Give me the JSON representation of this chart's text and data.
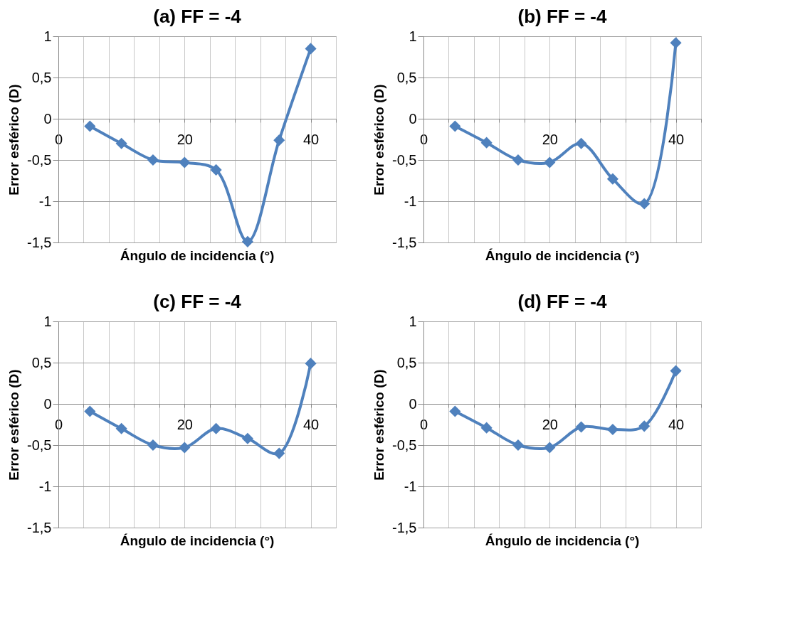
{
  "chart_data": [
    {
      "type": "line",
      "title": "(a) FF = -4",
      "xlabel": "Ángulo de incidencia (°)",
      "ylabel": "Error esférico (D)",
      "x": [
        5,
        10,
        15,
        20,
        25,
        30,
        35,
        40
      ],
      "xlim": [
        0,
        44
      ],
      "xticks": [
        0,
        {
          "value": 4,
          "label": null
        },
        {
          "value": 8,
          "label": null
        },
        {
          "value": 12,
          "label": null
        },
        {
          "value": 16,
          "label": null
        },
        20,
        {
          "value": 24,
          "label": null
        },
        {
          "value": 28,
          "label": null
        },
        {
          "value": 32,
          "label": null
        },
        {
          "value": 36,
          "label": null
        },
        40,
        {
          "value": 44,
          "label": null
        }
      ],
      "ylim": [
        -1.5,
        1
      ],
      "yticks": [
        {
          "value": -1.5,
          "label": "-1,5"
        },
        -1,
        {
          "value": -0.5,
          "label": "-0,5"
        },
        0,
        {
          "value": 0.5,
          "label": "0,5"
        },
        1
      ],
      "grid": true,
      "marker": "diamond",
      "line_style": "solid",
      "series": [
        {
          "color": "#4f81bd",
          "values": [
            -0.09,
            -0.3,
            -0.5,
            -0.53,
            -0.62,
            -1.49,
            -0.26,
            0.85
          ]
        }
      ]
    },
    {
      "type": "line",
      "title": "(b) FF = -4",
      "xlabel": "Ángulo de incidencia (°)",
      "ylabel": "Error esférico (D)",
      "x": [
        5,
        10,
        15,
        20,
        25,
        30,
        35,
        40
      ],
      "xlim": [
        0,
        44
      ],
      "xticks": [
        0,
        {
          "value": 4,
          "label": null
        },
        {
          "value": 8,
          "label": null
        },
        {
          "value": 12,
          "label": null
        },
        {
          "value": 16,
          "label": null
        },
        20,
        {
          "value": 24,
          "label": null
        },
        {
          "value": 28,
          "label": null
        },
        {
          "value": 32,
          "label": null
        },
        {
          "value": 36,
          "label": null
        },
        40,
        {
          "value": 44,
          "label": null
        }
      ],
      "ylim": [
        -1.5,
        1
      ],
      "yticks": [
        {
          "value": -1.5,
          "label": "-1,5"
        },
        -1,
        {
          "value": -0.5,
          "label": "-0,5"
        },
        0,
        {
          "value": 0.5,
          "label": "0,5"
        },
        1
      ],
      "grid": true,
      "marker": "diamond",
      "line_style": "solid",
      "series": [
        {
          "color": "#4f81bd",
          "values": [
            -0.09,
            -0.29,
            -0.5,
            -0.53,
            -0.3,
            -0.73,
            -1.03,
            0.92
          ]
        }
      ]
    },
    {
      "type": "line",
      "title": "(c) FF = -4",
      "xlabel": "Ángulo de incidencia (°)",
      "ylabel": "Error esférico (D)",
      "x": [
        5,
        10,
        15,
        20,
        25,
        30,
        35,
        40
      ],
      "xlim": [
        0,
        44
      ],
      "xticks": [
        0,
        {
          "value": 4,
          "label": null
        },
        {
          "value": 8,
          "label": null
        },
        {
          "value": 12,
          "label": null
        },
        {
          "value": 16,
          "label": null
        },
        20,
        {
          "value": 24,
          "label": null
        },
        {
          "value": 28,
          "label": null
        },
        {
          "value": 32,
          "label": null
        },
        {
          "value": 36,
          "label": null
        },
        40,
        {
          "value": 44,
          "label": null
        }
      ],
      "ylim": [
        -1.5,
        1
      ],
      "yticks": [
        {
          "value": -1.5,
          "label": "-1,5"
        },
        -1,
        {
          "value": -0.5,
          "label": "-0,5"
        },
        0,
        {
          "value": 0.5,
          "label": "0,5"
        },
        1
      ],
      "grid": true,
      "marker": "diamond",
      "line_style": "solid",
      "series": [
        {
          "color": "#4f81bd",
          "values": [
            -0.09,
            -0.3,
            -0.5,
            -0.53,
            -0.3,
            -0.42,
            -0.6,
            0.49
          ]
        }
      ]
    },
    {
      "type": "line",
      "title": "(d) FF = -4",
      "xlabel": "Ángulo de incidencia (°)",
      "ylabel": "Error esférico (D)",
      "x": [
        5,
        10,
        15,
        20,
        25,
        30,
        35,
        40
      ],
      "xlim": [
        0,
        44
      ],
      "xticks": [
        0,
        {
          "value": 4,
          "label": null
        },
        {
          "value": 8,
          "label": null
        },
        {
          "value": 12,
          "label": null
        },
        {
          "value": 16,
          "label": null
        },
        20,
        {
          "value": 24,
          "label": null
        },
        {
          "value": 28,
          "label": null
        },
        {
          "value": 32,
          "label": null
        },
        {
          "value": 36,
          "label": null
        },
        40,
        {
          "value": 44,
          "label": null
        }
      ],
      "ylim": [
        -1.5,
        1
      ],
      "yticks": [
        {
          "value": -1.5,
          "label": "-1,5"
        },
        -1,
        {
          "value": -0.5,
          "label": "-0,5"
        },
        0,
        {
          "value": 0.5,
          "label": "0,5"
        },
        1
      ],
      "grid": true,
      "marker": "diamond",
      "line_style": "solid",
      "series": [
        {
          "color": "#4f81bd",
          "values": [
            -0.09,
            -0.29,
            -0.5,
            -0.53,
            -0.28,
            -0.31,
            -0.27,
            0.4
          ]
        }
      ]
    }
  ]
}
